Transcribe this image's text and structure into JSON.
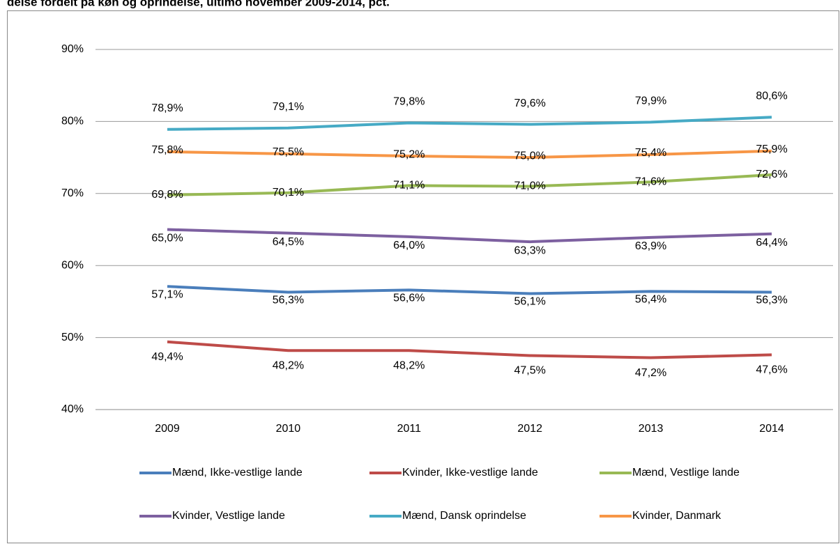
{
  "chart_data": {
    "type": "line",
    "title": "delse fordelt på køn og oprindelse, ultimo november 2009-2014, pct.",
    "categories": [
      "2009",
      "2010",
      "2011",
      "2012",
      "2013",
      "2014"
    ],
    "ylim": [
      40,
      90
    ],
    "yticks": [
      {
        "value": 40,
        "label": "40%"
      },
      {
        "value": 50,
        "label": "50%"
      },
      {
        "value": 60,
        "label": "60%"
      },
      {
        "value": 70,
        "label": "70%"
      },
      {
        "value": 80,
        "label": "80%"
      },
      {
        "value": 90,
        "label": "90%"
      }
    ],
    "grid": true,
    "legend": "bottom",
    "series": [
      {
        "name": "Mænd, Ikke-vestlige lande",
        "color": "#4a7ebb",
        "values": [
          57.1,
          56.3,
          56.6,
          56.1,
          56.4,
          56.3
        ],
        "value_labels": [
          "57,1%",
          "56,3%",
          "56,6%",
          "56,1%",
          "56,4%",
          "56,3%"
        ]
      },
      {
        "name": "Kvinder, Ikke-vestlige lande",
        "color": "#be4b48",
        "values": [
          49.4,
          48.2,
          48.2,
          47.5,
          47.2,
          47.6
        ],
        "value_labels": [
          "49,4%",
          "48,2%",
          "48,2%",
          "47,5%",
          "47,2%",
          "47,6%"
        ]
      },
      {
        "name": "Mænd, Vestlige lande",
        "color": "#98b954",
        "values": [
          69.8,
          70.1,
          71.1,
          71.0,
          71.6,
          72.6
        ],
        "value_labels": [
          "69,8%",
          "70,1%",
          "71,1%",
          "71,0%",
          "71,6%",
          "72,6%"
        ]
      },
      {
        "name": "Kvinder, Vestlige lande",
        "color": "#7d60a0",
        "values": [
          65.0,
          64.5,
          64.0,
          63.3,
          63.9,
          64.4
        ],
        "value_labels": [
          "65,0%",
          "64,5%",
          "64,0%",
          "63,3%",
          "63,9%",
          "64,4%"
        ]
      },
      {
        "name": "Mænd, Dansk oprindelse",
        "color": "#46aac5",
        "values": [
          78.9,
          79.1,
          79.8,
          79.6,
          79.9,
          80.6
        ],
        "value_labels": [
          "78,9%",
          "79,1%",
          "79,8%",
          "79,6%",
          "79,9%",
          "80,6%"
        ]
      },
      {
        "name": "Kvinder, Danmark",
        "color": "#f79646",
        "values": [
          75.8,
          75.5,
          75.2,
          75.0,
          75.4,
          75.9
        ],
        "value_labels": [
          "75,8%",
          "75,5%",
          "75,2%",
          "75,0%",
          "75,4%",
          "75,9%"
        ]
      }
    ]
  }
}
